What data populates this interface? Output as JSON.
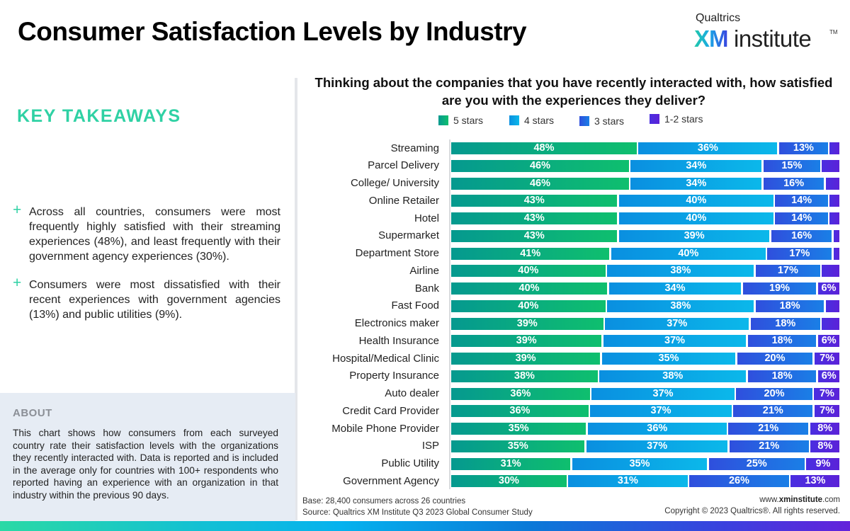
{
  "header": {
    "title": "Consumer Satisfaction Levels by Industry",
    "logo": {
      "top": "Qualtrics",
      "xm": "XM",
      "institute": "institute",
      "tm": "TM"
    }
  },
  "sidebar": {
    "heading": "KEY TAKEAWAYS",
    "bullet_icon": "plus-icon",
    "takeaways": [
      "Across all countries, consumers were most frequently highly satisfied with their streaming experiences (48%), and least frequently with their government agency experiences (30%).",
      "Consumers were most dissatisfied with their recent experiences with government agencies (13%) and public utilities (9%)."
    ],
    "about": {
      "heading": "ABOUT",
      "text": "This chart shows how consumers from each surveyed country rate their satisfaction levels with the organizations they recently interacted with. Data is reported and is included in the average only for countries with 100+ respondents who reported having an experience with an organization in that industry within the previous 90 days."
    }
  },
  "footer": {
    "base": "Base: 28,400 consumers across 26 countries",
    "source": "Source: Qualtrics XM Institute Q3 2023 Global Consumer Study",
    "url_prefix": "www.",
    "url_bold": "xminstitute",
    "url_suffix": ".com",
    "copyright": "Copyright © 2023 Qualtrics®. All rights reserved."
  },
  "colors": {
    "accent_green": "#2fd1a4",
    "five_stars": [
      "#05998f",
      "#0fbf6e"
    ],
    "four_stars": [
      "#0a8fe0",
      "#0bb8ea"
    ],
    "three_stars": [
      "#2f4fdd",
      "#1a7fe6"
    ],
    "one_two_stars": [
      "#4a2ee0",
      "#5b22d8"
    ]
  },
  "chart_data": {
    "type": "bar",
    "orientation": "horizontal",
    "stacked": true,
    "title": "Thinking about the companies that you have recently interacted with, how satisfied are you with the experiences they deliver?",
    "xlabel": "",
    "ylabel": "",
    "xlim": [
      0,
      100
    ],
    "grid": false,
    "legend_position": "top",
    "categories": [
      "Streaming",
      "Parcel Delivery",
      "College/ University",
      "Online Retailer",
      "Hotel",
      "Supermarket",
      "Department Store",
      "Airline",
      "Bank",
      "Fast Food",
      "Electronics maker",
      "Health Insurance",
      "Hospital/Medical Clinic",
      "Property Insurance",
      "Auto dealer",
      "Credit Card Provider",
      "Mobile Phone Provider",
      "ISP",
      "Public Utility",
      "Government Agency"
    ],
    "series": [
      {
        "name": "5 stars",
        "values": [
          48,
          46,
          46,
          43,
          43,
          43,
          41,
          40,
          40,
          40,
          39,
          39,
          39,
          38,
          36,
          36,
          35,
          35,
          31,
          30
        ],
        "labels_shown": [
          true,
          true,
          true,
          true,
          true,
          true,
          true,
          true,
          true,
          true,
          true,
          true,
          true,
          true,
          true,
          true,
          true,
          true,
          true,
          true
        ]
      },
      {
        "name": "4 stars",
        "values": [
          36,
          34,
          34,
          40,
          40,
          39,
          40,
          38,
          34,
          38,
          37,
          37,
          35,
          38,
          37,
          37,
          36,
          37,
          35,
          31
        ],
        "labels_shown": [
          true,
          true,
          true,
          true,
          true,
          true,
          true,
          true,
          true,
          true,
          true,
          true,
          true,
          true,
          true,
          true,
          true,
          true,
          true,
          true
        ]
      },
      {
        "name": "3 stars",
        "values": [
          13,
          15,
          16,
          14,
          14,
          16,
          17,
          17,
          19,
          18,
          18,
          18,
          20,
          18,
          20,
          21,
          21,
          21,
          25,
          26
        ],
        "labels_shown": [
          true,
          true,
          true,
          true,
          true,
          true,
          true,
          true,
          true,
          true,
          true,
          true,
          true,
          true,
          true,
          true,
          true,
          true,
          true,
          true
        ]
      },
      {
        "name": "1-2 stars",
        "values": [
          3,
          5,
          4,
          3,
          3,
          2,
          2,
          5,
          6,
          4,
          5,
          6,
          7,
          6,
          7,
          7,
          8,
          8,
          9,
          13
        ],
        "labels_shown": [
          false,
          false,
          false,
          false,
          false,
          false,
          false,
          false,
          true,
          false,
          false,
          true,
          true,
          true,
          true,
          true,
          true,
          true,
          true,
          true
        ]
      }
    ]
  }
}
